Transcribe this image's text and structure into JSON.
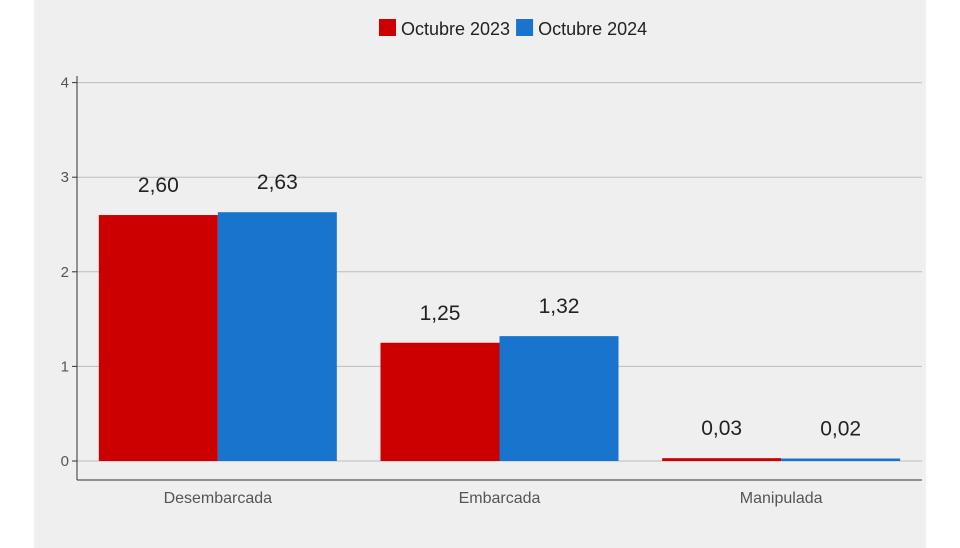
{
  "chart_data": {
    "type": "bar",
    "title": "",
    "xlabel": "",
    "ylabel": "",
    "categories": [
      "Desembarcada",
      "Embarcada",
      "Manipulada"
    ],
    "series": [
      {
        "name": "Octubre 2023",
        "color": "#cc0000",
        "values": [
          2.6,
          1.25,
          0.03
        ],
        "labels": [
          "2,60",
          "1,25",
          "0,03"
        ]
      },
      {
        "name": "Octubre 2024",
        "color": "#1874cd",
        "values": [
          2.63,
          1.32,
          0.02
        ],
        "labels": [
          "2,63",
          "1,32",
          "0,02"
        ]
      }
    ],
    "ylim": [
      0,
      4
    ],
    "yticks": [
      "0",
      "1",
      "2",
      "3",
      "4"
    ],
    "grid": true,
    "legend_position": "top-center"
  }
}
